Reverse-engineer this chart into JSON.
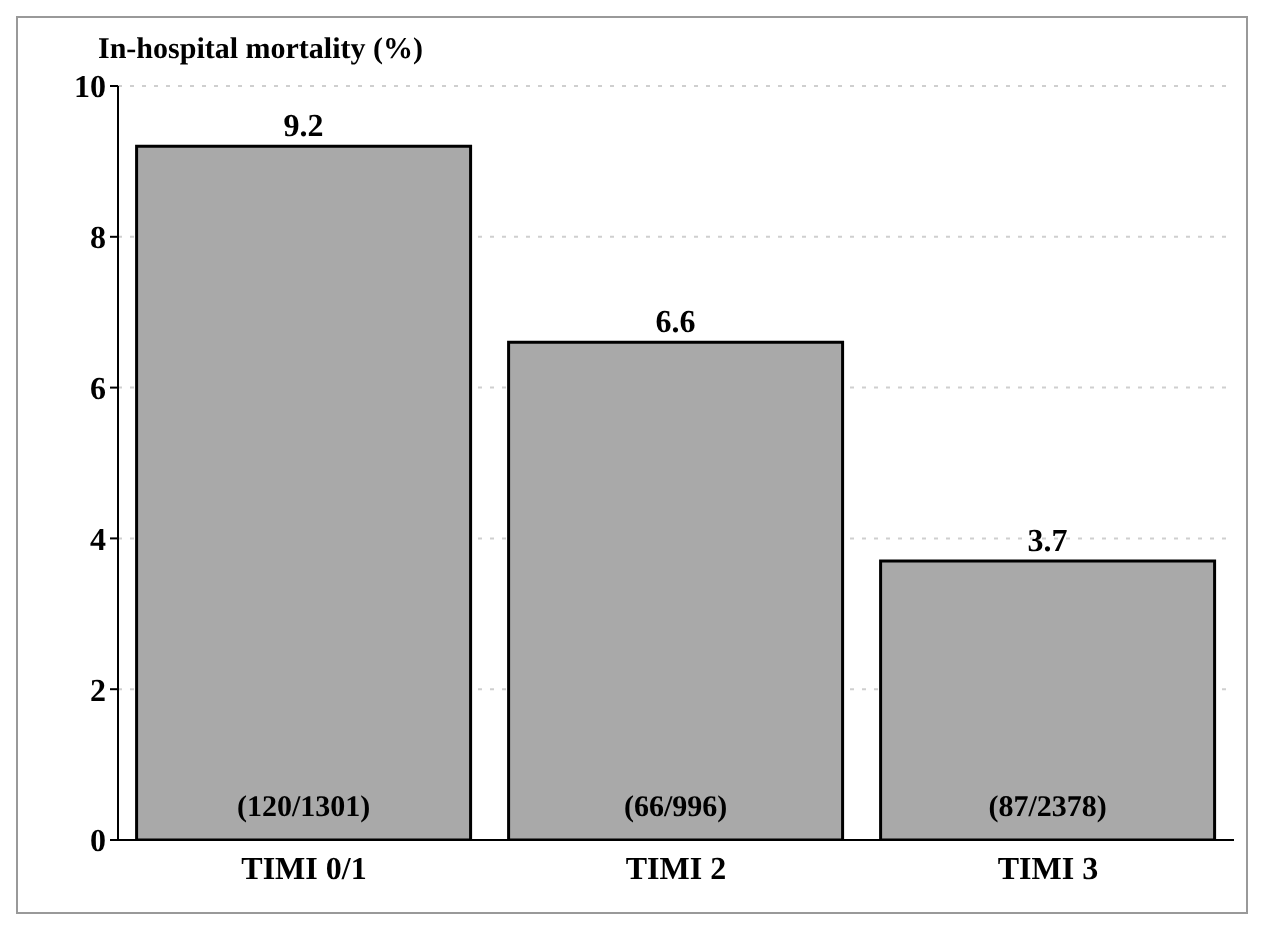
{
  "chart_data": {
    "type": "bar",
    "ylabel": "In-hospital mortality (%)",
    "categories": [
      "TIMI 0/1",
      "TIMI 2",
      "TIMI 3"
    ],
    "values": [
      9.2,
      6.6,
      3.7
    ],
    "color": "#a9a9a9",
    "ylim": [
      0,
      10
    ],
    "yticks": [
      0,
      2,
      4,
      6,
      8,
      10
    ],
    "grid": "y",
    "data_labels": true,
    "annotations": [
      "(120/1301)",
      "(66/996)",
      "(87/2378)"
    ]
  }
}
